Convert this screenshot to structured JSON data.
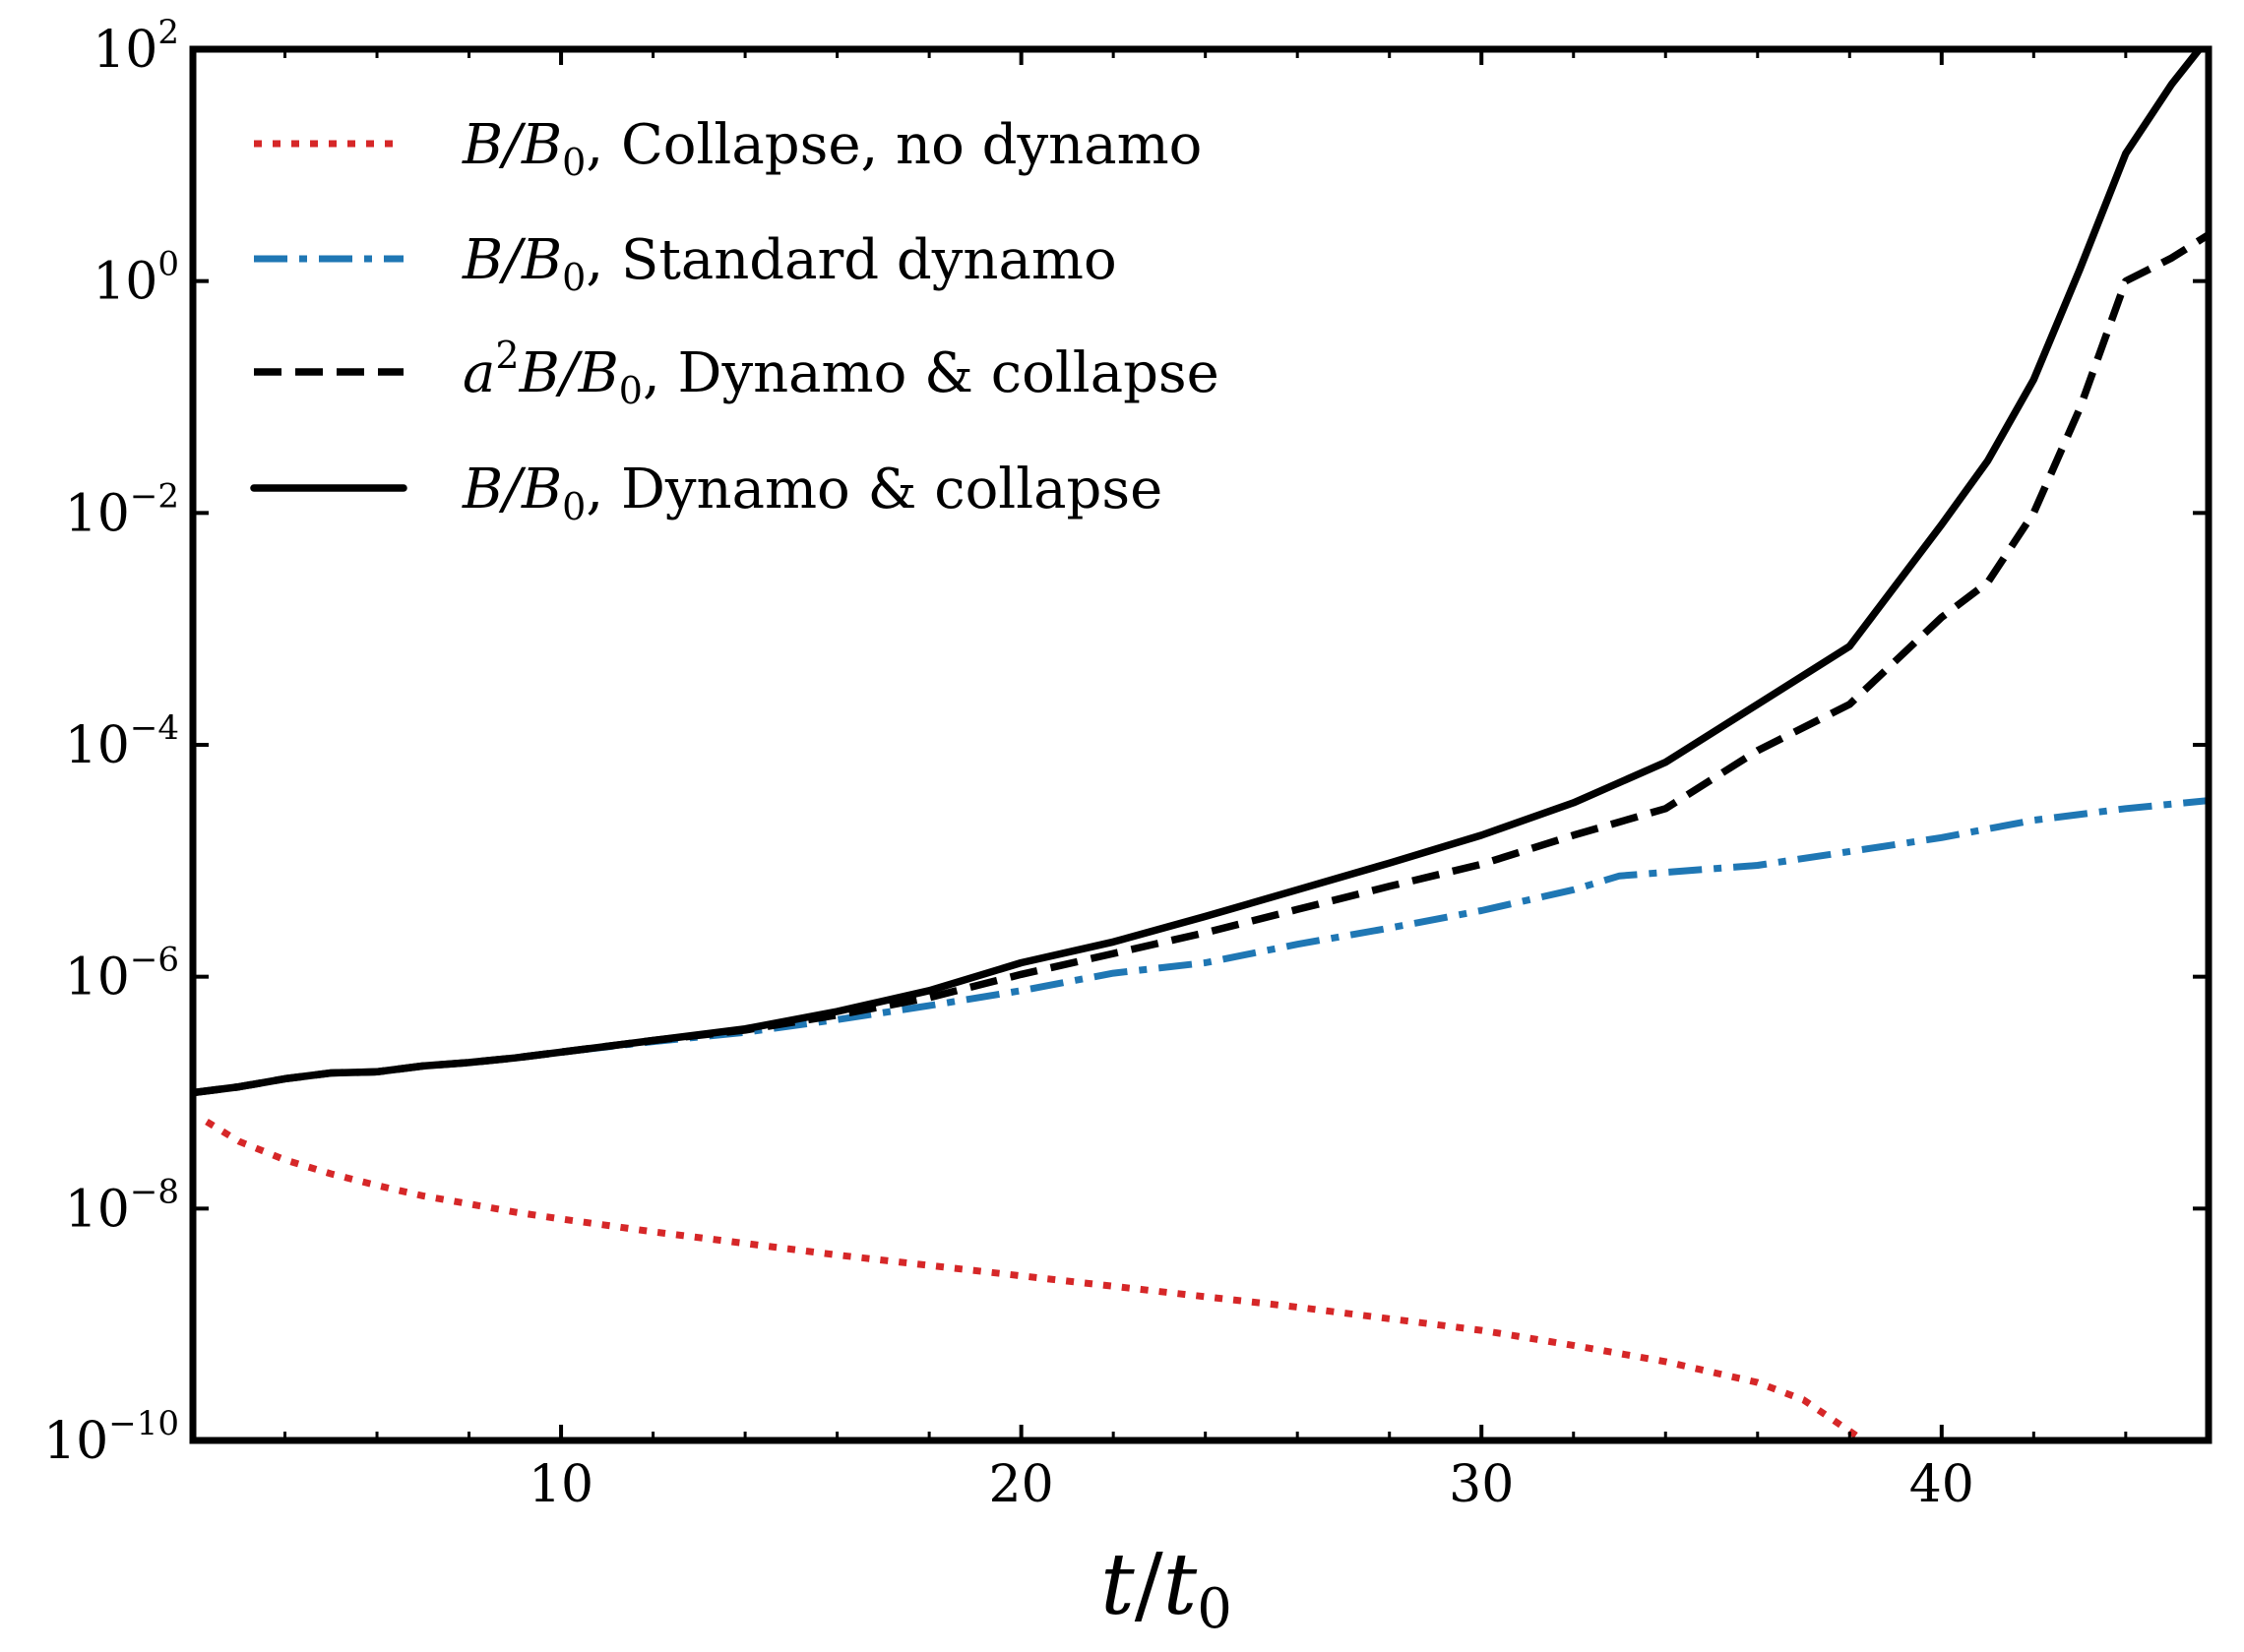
{
  "chart_data": {
    "type": "line",
    "title": "",
    "xlabel": "t/t0",
    "xlabel_parts": {
      "num": "t",
      "slash": "/",
      "den": "t",
      "den_sub": "0"
    },
    "ylabel": "",
    "xlim": [
      2,
      45.8
    ],
    "ylim_log10": [
      -10,
      2
    ],
    "yscale": "log",
    "x_ticks": [
      10,
      20,
      30,
      40
    ],
    "x_tick_labels": [
      "10",
      "20",
      "30",
      "40"
    ],
    "y_ticks_log10": [
      -10,
      -8,
      -6,
      -4,
      -2,
      0,
      2
    ],
    "y_tick_labels": [
      {
        "base": "10",
        "exp": "−10"
      },
      {
        "base": "10",
        "exp": "−8"
      },
      {
        "base": "10",
        "exp": "−6"
      },
      {
        "base": "10",
        "exp": "−4"
      },
      {
        "base": "10",
        "exp": "−2"
      },
      {
        "base": "10",
        "exp": "0"
      },
      {
        "base": "10",
        "exp": "2"
      }
    ],
    "legend_position": "top-left",
    "series": [
      {
        "name": "B/B0, Collapse, no dynamo",
        "legend": {
          "pre": "",
          "var": "B/B",
          "sub": "0",
          "rest": ", Collapse, no dynamo"
        },
        "style": "dotted",
        "color": "#d62728",
        "x": [
          2.3,
          3,
          4,
          5,
          6,
          7,
          8,
          9,
          10,
          12,
          14,
          16,
          18,
          20,
          22,
          24,
          26,
          28,
          30,
          32,
          34,
          36,
          37,
          38.3
        ],
        "y_log10": [
          -7.25,
          -7.42,
          -7.58,
          -7.7,
          -7.8,
          -7.89,
          -7.96,
          -8.03,
          -8.09,
          -8.2,
          -8.3,
          -8.4,
          -8.49,
          -8.58,
          -8.67,
          -8.76,
          -8.85,
          -8.95,
          -9.05,
          -9.18,
          -9.32,
          -9.5,
          -9.65,
          -10.0
        ]
      },
      {
        "name": "B/B0, Standard dynamo",
        "legend": {
          "pre": "",
          "var": "B/B",
          "sub": "0",
          "rest": ", Standard dynamo"
        },
        "style": "dashdot",
        "color": "#1f77b4",
        "x": [
          2,
          3,
          4,
          5,
          6,
          7,
          8,
          9,
          10,
          12,
          14,
          16,
          18,
          20,
          22,
          24,
          26,
          28,
          30,
          32,
          33,
          34,
          36,
          38,
          40,
          42,
          44,
          45.8
        ],
        "y_log10": [
          -7.0,
          -6.95,
          -6.88,
          -6.83,
          -6.82,
          -6.77,
          -6.74,
          -6.7,
          -6.65,
          -6.56,
          -6.48,
          -6.37,
          -6.25,
          -6.12,
          -5.97,
          -5.88,
          -5.72,
          -5.58,
          -5.43,
          -5.25,
          -5.13,
          -5.1,
          -5.04,
          -4.92,
          -4.8,
          -4.65,
          -4.55,
          -4.48
        ]
      },
      {
        "name": "a^2B/B0, Dynamo & collapse",
        "legend": {
          "pre": "a",
          "pre_sup": "2",
          "var": "B/B",
          "sub": "0",
          "rest": ", Dynamo & collapse"
        },
        "style": "dashed",
        "color": "#000000",
        "x": [
          2,
          3,
          4,
          5,
          6,
          7,
          8,
          9,
          10,
          12,
          14,
          16,
          18,
          20,
          22,
          24,
          26,
          28,
          30,
          32,
          34,
          36,
          38,
          40,
          41,
          42,
          43,
          44,
          45,
          45.8
        ],
        "y_log10": [
          -7.0,
          -6.95,
          -6.88,
          -6.83,
          -6.82,
          -6.77,
          -6.74,
          -6.7,
          -6.65,
          -6.55,
          -6.46,
          -6.33,
          -6.18,
          -5.98,
          -5.8,
          -5.62,
          -5.42,
          -5.22,
          -5.03,
          -4.78,
          -4.55,
          -4.05,
          -3.65,
          -2.9,
          -2.6,
          -2.0,
          -1.1,
          0.0,
          0.2,
          0.4
        ]
      },
      {
        "name": "B/B0, Dynamo & collapse",
        "legend": {
          "pre": "",
          "var": "B/B",
          "sub": "0",
          "rest": ", Dynamo & collapse"
        },
        "style": "solid",
        "color": "#000000",
        "x": [
          2,
          3,
          4,
          5,
          6,
          7,
          8,
          9,
          10,
          12,
          14,
          16,
          18,
          20,
          22,
          24,
          26,
          28,
          30,
          32,
          34,
          36,
          38,
          40,
          41,
          42,
          43,
          44,
          45,
          45.6
        ],
        "y_log10": [
          -7.0,
          -6.95,
          -6.88,
          -6.83,
          -6.82,
          -6.77,
          -6.74,
          -6.7,
          -6.65,
          -6.55,
          -6.45,
          -6.3,
          -6.12,
          -5.88,
          -5.7,
          -5.48,
          -5.25,
          -5.02,
          -4.78,
          -4.5,
          -4.15,
          -3.65,
          -3.15,
          -2.1,
          -1.55,
          -0.85,
          0.1,
          1.1,
          1.7,
          2.0
        ]
      }
    ]
  }
}
